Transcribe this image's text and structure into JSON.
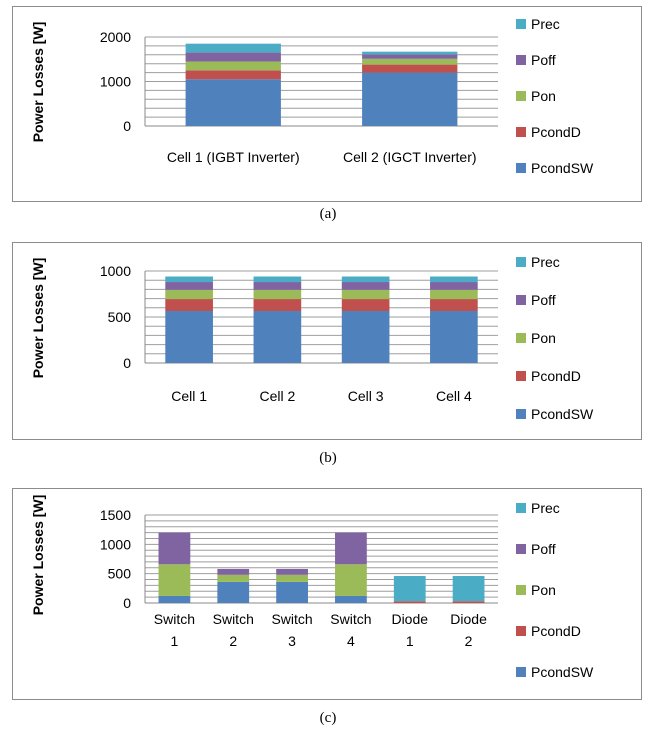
{
  "colors": {
    "PcondSW": "#4f81bd",
    "PcondD": "#c0504d",
    "Pon": "#9bbb59",
    "Poff": "#8064a2",
    "Prec": "#4bacc6"
  },
  "chart_data": [
    {
      "type": "bar",
      "stacked": true,
      "caption": "(a)",
      "ylabel": "Power Losses [W]",
      "ylim": [
        0,
        2000
      ],
      "yticks": [
        0,
        1000,
        2000
      ],
      "grid_step": 200,
      "legend_position": "right",
      "legend_order": [
        "Prec",
        "Poff",
        "Pon",
        "PcondD",
        "PcondSW"
      ],
      "categories": [
        [
          "Cell 1 (IGBT Inverter)"
        ],
        [
          "Cell 2 (IGCT Inverter)"
        ]
      ],
      "series": [
        {
          "name": "PcondSW",
          "values": [
            1050,
            1200
          ]
        },
        {
          "name": "PcondD",
          "values": [
            200,
            180
          ]
        },
        {
          "name": "Pon",
          "values": [
            200,
            130
          ]
        },
        {
          "name": "Poff",
          "values": [
            200,
            100
          ]
        },
        {
          "name": "Prec",
          "values": [
            200,
            60
          ]
        }
      ]
    },
    {
      "type": "bar",
      "stacked": true,
      "caption": "(b)",
      "ylabel": "Power Losses [W]",
      "ylim": [
        0,
        1000
      ],
      "yticks": [
        0,
        500,
        1000
      ],
      "grid_step": 100,
      "legend_position": "right",
      "legend_order": [
        "Prec",
        "Poff",
        "Pon",
        "PcondD",
        "PcondSW"
      ],
      "categories": [
        [
          "Cell 1"
        ],
        [
          "Cell 2"
        ],
        [
          "Cell 3"
        ],
        [
          "Cell 4"
        ]
      ],
      "series": [
        {
          "name": "PcondSW",
          "values": [
            565,
            565,
            565,
            565
          ]
        },
        {
          "name": "PcondD",
          "values": [
            130,
            130,
            130,
            130
          ]
        },
        {
          "name": "Pon",
          "values": [
            100,
            100,
            100,
            100
          ]
        },
        {
          "name": "Poff",
          "values": [
            85,
            85,
            85,
            85
          ]
        },
        {
          "name": "Prec",
          "values": [
            60,
            60,
            60,
            60
          ]
        }
      ]
    },
    {
      "type": "bar",
      "stacked": true,
      "caption": "(c)",
      "ylabel": "Power Losses [W]",
      "ylim": [
        0,
        1500
      ],
      "yticks": [
        0,
        500,
        1000,
        1500
      ],
      "grid_step": 100,
      "legend_position": "right",
      "legend_order": [
        "Prec",
        "Poff",
        "Pon",
        "PcondD",
        "PcondSW"
      ],
      "categories": [
        [
          "Switch",
          "1"
        ],
        [
          "Switch",
          "2"
        ],
        [
          "Switch",
          "3"
        ],
        [
          "Switch",
          "4"
        ],
        [
          "Diode",
          "1"
        ],
        [
          "Diode",
          "2"
        ]
      ],
      "series": [
        {
          "name": "PcondSW",
          "values": [
            120,
            360,
            360,
            120,
            0,
            0
          ]
        },
        {
          "name": "PcondD",
          "values": [
            0,
            0,
            0,
            0,
            30,
            30
          ]
        },
        {
          "name": "Pon",
          "values": [
            540,
            120,
            120,
            540,
            0,
            0
          ]
        },
        {
          "name": "Poff",
          "values": [
            540,
            100,
            100,
            540,
            0,
            0
          ]
        },
        {
          "name": "Prec",
          "values": [
            0,
            0,
            0,
            0,
            430,
            430
          ]
        }
      ]
    }
  ]
}
